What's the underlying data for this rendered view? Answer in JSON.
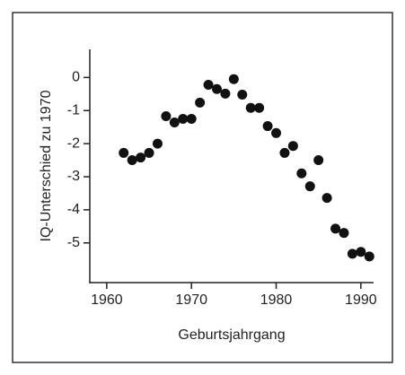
{
  "chart_data": {
    "type": "scatter",
    "x_label": "Geburtsjahrgang",
    "y_label": "IQ-Unterschied zu 1970",
    "x": [
      1962,
      1963,
      1964,
      1965,
      1966,
      1967,
      1968,
      1969,
      1970,
      1971,
      1972,
      1973,
      1974,
      1975,
      1976,
      1977,
      1978,
      1979,
      1980,
      1981,
      1982,
      1983,
      1984,
      1985,
      1986,
      1987,
      1988,
      1989,
      1990,
      1991
    ],
    "values": [
      -2.28,
      -2.5,
      -2.42,
      -2.28,
      -2.0,
      -1.17,
      -1.36,
      -1.25,
      -1.25,
      -0.76,
      -0.22,
      -0.35,
      -0.49,
      -0.05,
      -0.52,
      -0.92,
      -0.92,
      -1.47,
      -1.68,
      -2.28,
      -2.07,
      -2.9,
      -3.29,
      -2.5,
      -3.64,
      -4.57,
      -4.7,
      -5.33,
      -5.27,
      -5.41
    ],
    "color": "#111111",
    "xlim": [
      1958,
      1991.5
    ],
    "xticks": [
      1960,
      1970,
      1980,
      1990
    ],
    "ylim": [
      -6.2,
      0.85
    ],
    "yticks": [
      0,
      -1,
      -2,
      -3,
      -4,
      -5
    ]
  }
}
